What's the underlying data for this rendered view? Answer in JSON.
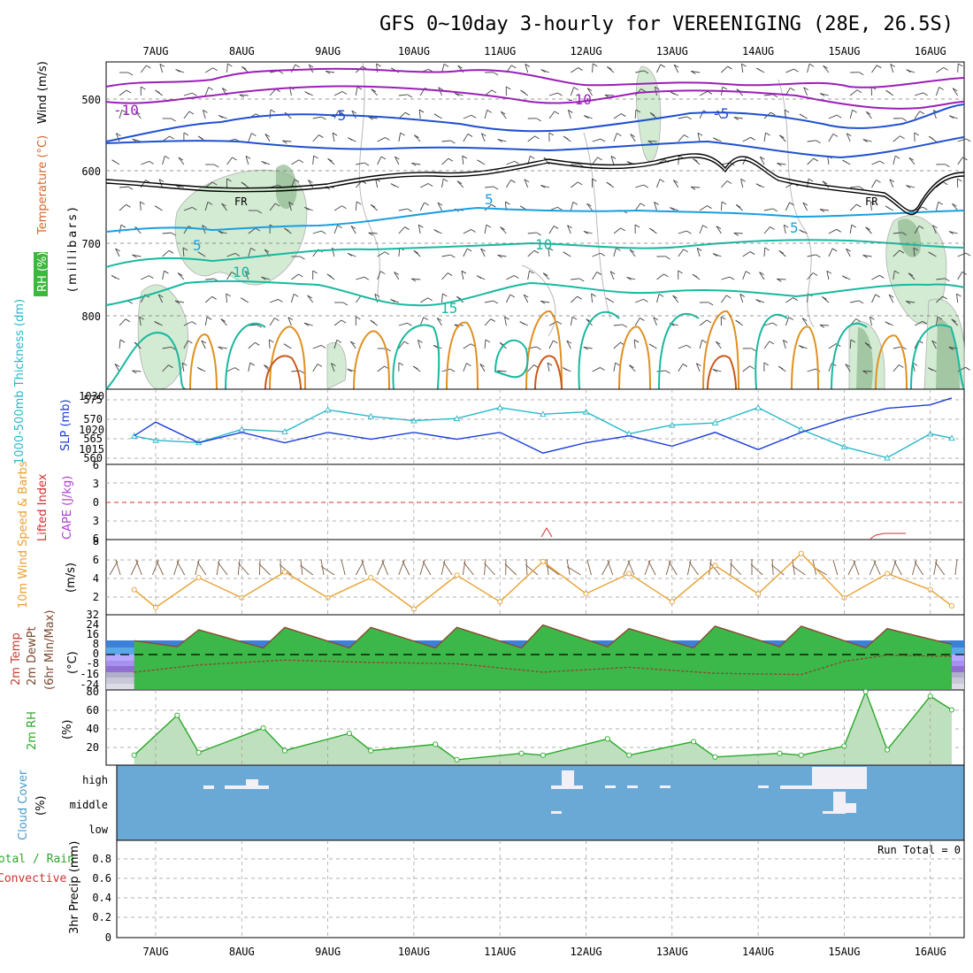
{
  "title": "GFS 0~10day 3-hourly for VEREENIGING (28E, 26.5S)",
  "date_labels": [
    "7AUG",
    "8AUG",
    "9AUG",
    "10AUG",
    "11AUG",
    "12AUG",
    "13AUG",
    "14AUG",
    "15AUG",
    "16AUG"
  ],
  "colors": {
    "temperature_purple": "#9a1fb8",
    "temperature_blue": "#2050d0",
    "freezing_level": "#000000",
    "temperature_cyan": "#1a9fe0",
    "temperature_teal": "#18b8a0",
    "temperature_orange": "#e09020",
    "rh_shade": "#7fbf7f",
    "thickness": "#28b8c8",
    "slp": "#1a3cd8",
    "wind10m": "#e8a030",
    "cloud_bg": "#6aa9d6",
    "rh2m": "#2aa82a",
    "lifted_index": "#d03030",
    "cape": "#b040d0"
  },
  "panels": {
    "upper_air": {
      "ylabel_rh": "RH (%)",
      "ylabel_temp": "Temperature (°C)",
      "ylabel_wind": "Wind (m/s)",
      "ylabel_pressure": "(millibars)",
      "yticks": [
        "500",
        "600",
        "700",
        "800"
      ],
      "contour_labels": [
        "-10",
        "-10",
        "-5",
        "-5",
        "FR",
        "FR",
        "5",
        "5",
        "5",
        "10",
        "10",
        "15"
      ]
    },
    "thickness_slp": {
      "ylabel_thickness": "1000-500mb Thickness (dm)",
      "ylabel_slp": "SLP (mb)",
      "yticks_left": [
        "575",
        "570",
        "565",
        "560"
      ],
      "yticks_right": [
        "1030",
        "1020",
        "1015"
      ]
    },
    "lifted_cape": {
      "ylabel_li": "Lifted Index",
      "ylabel_cape": "CAPE (J/kg)",
      "yticks": [
        "6",
        "3",
        "0",
        "3",
        "6"
      ]
    },
    "wind10m": {
      "ylabel": "10m Wind Speed & Barbs",
      "unit": "(m/s)",
      "yticks": [
        "8",
        "6",
        "4",
        "2"
      ]
    },
    "temp2m": {
      "ylabel_temp": "2m Temp",
      "ylabel_dew": "2m DewPt",
      "ylabel_minmax": "(6hr Min/Max)",
      "unit": "(°C)",
      "yticks": [
        "32",
        "24",
        "16",
        "8",
        "0",
        "-8",
        "-16",
        "-24"
      ]
    },
    "rh2m": {
      "ylabel": "2m RH",
      "unit": "(%)",
      "yticks": [
        "80",
        "60",
        "40",
        "20"
      ]
    },
    "cloud": {
      "ylabel": "Cloud Cover",
      "unit": "(%)",
      "levels": [
        "high",
        "middle",
        "low"
      ]
    },
    "precip": {
      "ylabel_total": "Total / Rain",
      "ylabel_conv": "Convective",
      "ylabel_main": "3hr Precip (mm)",
      "run_total": "Run Total = 0",
      "yticks": [
        "0.8",
        "0.6",
        "0.4",
        "0.2",
        "0"
      ]
    }
  },
  "chart_data": [
    {
      "type": "line",
      "title": "1000-500mb Thickness (dm)",
      "x": [
        "6AUG18",
        "7AUG00",
        "7AUG12",
        "8AUG00",
        "8AUG12",
        "9AUG00",
        "9AUG12",
        "10AUG00",
        "10AUG12",
        "11AUG00",
        "11AUG12",
        "12AUG00",
        "12AUG12",
        "13AUG00",
        "13AUG12",
        "14AUG00",
        "14AUG12",
        "15AUG00",
        "15AUG12",
        "16AUG00",
        "16AUG06"
      ],
      "values": [
        565.5,
        564.5,
        564.0,
        567.0,
        566.5,
        571.5,
        570.0,
        569.0,
        569.5,
        572.0,
        570.5,
        571.0,
        566.0,
        568.0,
        568.5,
        572.0,
        567.0,
        563.0,
        560.5,
        566.0,
        565.0
      ],
      "ylim": [
        560,
        575
      ]
    },
    {
      "type": "line",
      "title": "SLP (mb)",
      "x": [
        "6AUG18",
        "7AUG00",
        "7AUG12",
        "8AUG00",
        "8AUG12",
        "9AUG00",
        "9AUG12",
        "10AUG00",
        "10AUG12",
        "11AUG00",
        "11AUG12",
        "12AUG00",
        "12AUG12",
        "13AUG00",
        "13AUG12",
        "14AUG00",
        "14AUG12",
        "15AUG00",
        "15AUG12",
        "16AUG00",
        "16AUG06"
      ],
      "values": [
        1019,
        1023,
        1017,
        1020,
        1017,
        1020,
        1018,
        1020,
        1018,
        1020,
        1014,
        1017,
        1019,
        1016,
        1020,
        1015,
        1020,
        1024,
        1027,
        1028,
        1030
      ],
      "ylim": [
        1012,
        1031
      ]
    },
    {
      "type": "line",
      "title": "10m Wind Speed (m/s)",
      "x": [
        "6AUG18",
        "7AUG00",
        "7AUG12",
        "8AUG00",
        "8AUG12",
        "9AUG00",
        "9AUG12",
        "10AUG00",
        "10AUG12",
        "11AUG00",
        "11AUG12",
        "12AUG00",
        "12AUG12",
        "13AUG00",
        "13AUG12",
        "14AUG00",
        "14AUG12",
        "15AUG00",
        "15AUG12",
        "16AUG00",
        "16AUG06"
      ],
      "values": [
        3.0,
        0.8,
        4.5,
        2.0,
        5.2,
        2.0,
        4.5,
        0.6,
        4.8,
        1.5,
        6.5,
        2.5,
        5.0,
        1.5,
        6.0,
        2.5,
        7.5,
        2.0,
        5.0,
        3.0,
        1.0
      ],
      "ylim": [
        0,
        9
      ]
    },
    {
      "type": "area",
      "title": "2m Temp (°C)",
      "x": [
        "6AUG18",
        "7AUG06",
        "7AUG12",
        "8AUG06",
        "8AUG12",
        "9AUG06",
        "9AUG12",
        "10AUG06",
        "10AUG12",
        "11AUG06",
        "11AUG12",
        "12AUG06",
        "12AUG12",
        "13AUG06",
        "13AUG12",
        "14AUG06",
        "14AUG12",
        "15AUG06",
        "15AUG12",
        "16AUG06"
      ],
      "values": [
        12,
        7,
        21,
        6,
        23,
        6,
        23,
        6,
        23,
        6,
        25,
        7,
        22,
        6,
        24,
        7,
        24,
        6,
        22,
        9
      ],
      "ylim": [
        -28,
        32
      ]
    },
    {
      "type": "line",
      "title": "2m DewPt (°C)",
      "x": [
        "6AUG18",
        "7AUG12",
        "8AUG12",
        "9AUG12",
        "10AUG12",
        "11AUG12",
        "12AUG12",
        "13AUG12",
        "14AUG12",
        "15AUG00",
        "15AUG12",
        "16AUG06"
      ],
      "values": [
        -14,
        -8,
        -4,
        -6,
        -7,
        -14,
        -10,
        -15,
        -16,
        -5,
        0,
        -1
      ],
      "ylim": [
        -28,
        32
      ]
    },
    {
      "type": "area",
      "title": "2m RH (%)",
      "x": [
        "6AUG18",
        "7AUG06",
        "7AUG12",
        "8AUG06",
        "8AUG12",
        "9AUG06",
        "9AUG12",
        "10AUG06",
        "10AUG12",
        "11AUG06",
        "11AUG12",
        "12AUG06",
        "12AUG12",
        "13AUG06",
        "13AUG12",
        "14AUG06",
        "14AUG12",
        "15AUG00",
        "15AUG06",
        "15AUG12",
        "16AUG00",
        "16AUG06"
      ],
      "values": [
        10,
        54,
        13,
        40,
        15,
        34,
        15,
        22,
        5,
        12,
        10,
        28,
        10,
        25,
        8,
        12,
        10,
        20,
        80,
        16,
        75,
        60
      ],
      "ylim": [
        0,
        80
      ]
    },
    {
      "type": "bar",
      "title": "3hr Precip (mm)",
      "x": [
        "7AUG",
        "8AUG",
        "9AUG",
        "10AUG",
        "11AUG",
        "12AUG",
        "13AUG",
        "14AUG",
        "15AUG",
        "16AUG"
      ],
      "values": [
        0,
        0,
        0,
        0,
        0,
        0,
        0,
        0,
        0,
        0
      ],
      "ylim": [
        0,
        1
      ]
    }
  ]
}
